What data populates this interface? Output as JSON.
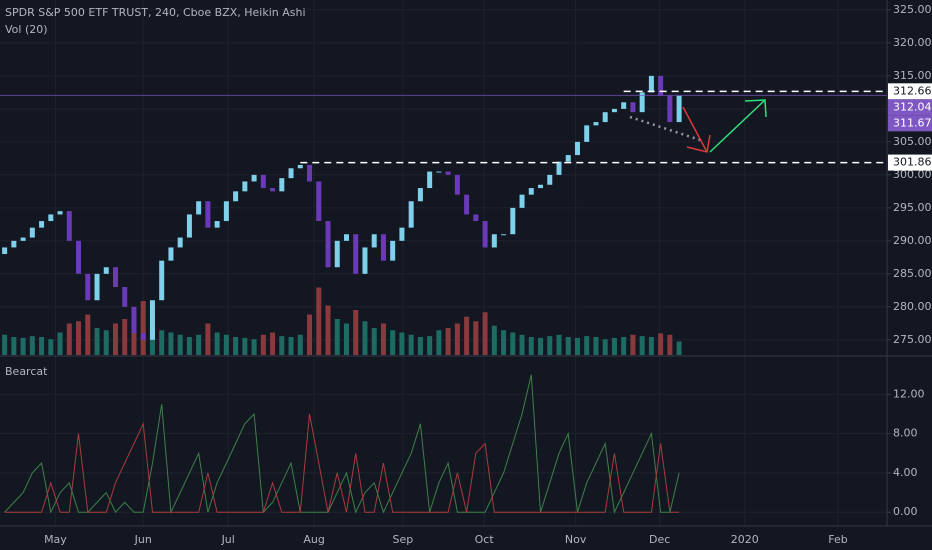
{
  "chart_data": [
    {
      "type": "candlestick",
      "title": "SPDR S&P 500 ETF TRUST, 240, Cboe BZX, Heikin Ashi",
      "subtitle": "Vol (20)",
      "x": [
        0,
        1,
        2,
        3,
        4,
        5,
        6,
        7,
        8,
        9,
        10,
        11,
        12,
        13,
        14,
        15,
        16,
        17,
        18,
        19,
        20,
        21,
        22,
        23,
        24,
        25,
        26,
        27,
        28,
        29,
        30,
        31,
        32,
        33,
        34,
        35,
        36,
        37,
        38,
        39,
        40,
        41,
        42,
        43,
        44,
        45,
        46,
        47,
        48,
        49,
        50,
        51,
        52,
        53,
        54,
        55,
        56,
        57,
        58,
        59,
        60,
        61,
        62,
        63,
        64,
        65,
        66,
        67,
        68,
        69,
        70,
        71,
        72,
        73
      ],
      "open": [
        288,
        289,
        290,
        290.5,
        292,
        293,
        294,
        294.5,
        290,
        285,
        281,
        285,
        286,
        283,
        280,
        276,
        275,
        281,
        287,
        289,
        290.5,
        294,
        296,
        292,
        293,
        296,
        297.5,
        299,
        300,
        298,
        297.5,
        299.5,
        301,
        301.5,
        299,
        293,
        286,
        290,
        291,
        285,
        289,
        291,
        287,
        290,
        292,
        296,
        298,
        300.5,
        300.5,
        300,
        297,
        294,
        293,
        289,
        291,
        291,
        295,
        297,
        298,
        298.5,
        300,
        302,
        303,
        305,
        307.5,
        308,
        309.5,
        310,
        311,
        309.5,
        312.5,
        315,
        312,
        308
      ],
      "close": [
        289,
        290,
        290.5,
        292,
        293,
        294,
        294.5,
        290,
        285,
        281,
        285,
        286,
        283,
        280,
        276,
        275,
        281,
        287,
        289,
        290.5,
        294,
        296,
        292,
        293,
        296,
        297.5,
        299,
        300,
        298,
        297.5,
        299.5,
        301,
        301.5,
        299,
        293,
        286,
        290,
        291,
        285,
        289,
        291,
        287,
        290,
        292,
        296,
        298,
        300.5,
        300.5,
        300,
        297,
        294,
        293,
        289,
        291,
        291,
        295,
        297,
        298,
        298.5,
        300,
        302,
        303,
        305,
        307.5,
        308,
        309.5,
        310,
        311,
        309.5,
        312.5,
        315,
        312,
        308,
        312
      ],
      "volume": [
        45,
        40,
        38,
        42,
        40,
        35,
        50,
        70,
        75,
        90,
        60,
        55,
        70,
        80,
        95,
        120,
        60,
        55,
        50,
        45,
        40,
        45,
        70,
        50,
        45,
        40,
        38,
        35,
        45,
        50,
        42,
        40,
        45,
        90,
        150,
        110,
        80,
        70,
        100,
        75,
        60,
        70,
        55,
        50,
        45,
        40,
        42,
        55,
        60,
        70,
        85,
        75,
        95,
        65,
        55,
        50,
        45,
        40,
        38,
        42,
        45,
        40,
        38,
        42,
        40,
        35,
        38,
        40,
        45,
        42,
        40,
        48,
        45,
        30
      ],
      "up_color": "#7fd0ea",
      "down_color": "#6b3ab8",
      "volume_up_color": "#1e6b64",
      "volume_down_color": "#8a3a3d",
      "xlim": [
        -0.5,
        95.5
      ],
      "ylim": [
        272.7,
        326.5
      ],
      "yticks": [
        {
          "value": 275,
          "label": "275.00"
        },
        {
          "value": 280,
          "label": "280.00"
        },
        {
          "value": 285,
          "label": "285.00"
        },
        {
          "value": 290,
          "label": "290.00"
        },
        {
          "value": 295,
          "label": "295.00"
        },
        {
          "value": 300,
          "label": "300.00"
        },
        {
          "value": 305,
          "label": "305.00"
        },
        {
          "value": 310,
          "label": "310.00"
        },
        {
          "value": 315,
          "label": "315.00"
        },
        {
          "value": 320,
          "label": "320.00"
        },
        {
          "value": 325,
          "label": "325.00"
        }
      ],
      "grid": true,
      "levels": [
        {
          "value": 312.66,
          "x_start": 67
        },
        {
          "value": 301.86,
          "x_start": 32
        }
      ],
      "markers": [
        {
          "value": 312.04,
          "color": "#7e57c2"
        },
        {
          "value": 311.67,
          "color": "#7e57c2"
        }
      ]
    },
    {
      "type": "oscillator",
      "title": "Bearcat",
      "series": [
        {
          "color": "#3f8048",
          "values": [
            0,
            1,
            2,
            4,
            5,
            0,
            2,
            3,
            0,
            0,
            1,
            2,
            0,
            1,
            0,
            0,
            5,
            11,
            0,
            2,
            4,
            6,
            0,
            3,
            5,
            7,
            9,
            10,
            0,
            1,
            3,
            5,
            0,
            0,
            0,
            0,
            2,
            4,
            0,
            2,
            3,
            0,
            2,
            4,
            6,
            9,
            0,
            3,
            5,
            0,
            0,
            0,
            0,
            2,
            4,
            7,
            10,
            14,
            0,
            3,
            6,
            8,
            0,
            3,
            5,
            7,
            0,
            2,
            4,
            6,
            8,
            0,
            0,
            4
          ]
        },
        {
          "color": "#a83c3c",
          "values": [
            0,
            0,
            0,
            0,
            0,
            3,
            0,
            0,
            8,
            0,
            0,
            0,
            3,
            5,
            7,
            9,
            0,
            0,
            0,
            0,
            0,
            0,
            4,
            0,
            0,
            0,
            0,
            0,
            0,
            3,
            0,
            0,
            0,
            10,
            5,
            0,
            4,
            0,
            6,
            0,
            0,
            5,
            0,
            0,
            0,
            0,
            0,
            0,
            0,
            4,
            0,
            6,
            7,
            0,
            0,
            0,
            0,
            0,
            0,
            0,
            0,
            0,
            0,
            0,
            0,
            0,
            6,
            0,
            0,
            0,
            0,
            7,
            0,
            0
          ]
        }
      ],
      "ylim": [
        -1.3,
        15.8
      ],
      "yticks": [
        {
          "value": 0,
          "label": "0.00"
        },
        {
          "value": 4,
          "label": "4.00"
        },
        {
          "value": 8,
          "label": "8.00"
        },
        {
          "value": 12,
          "label": "12.00"
        }
      ],
      "xticks": [
        {
          "value": 5.5,
          "label": "May"
        },
        {
          "value": 15,
          "label": "Jun"
        },
        {
          "value": 24.2,
          "label": "Jul"
        },
        {
          "value": 33.5,
          "label": "Aug"
        },
        {
          "value": 43.1,
          "label": "Sep"
        },
        {
          "value": 51.9,
          "label": "Oct"
        },
        {
          "value": 61.8,
          "label": "Nov"
        },
        {
          "value": 70.9,
          "label": "Dec"
        },
        {
          "value": 80.1,
          "label": "2020"
        },
        {
          "value": 90.2,
          "label": "Feb"
        }
      ]
    }
  ]
}
